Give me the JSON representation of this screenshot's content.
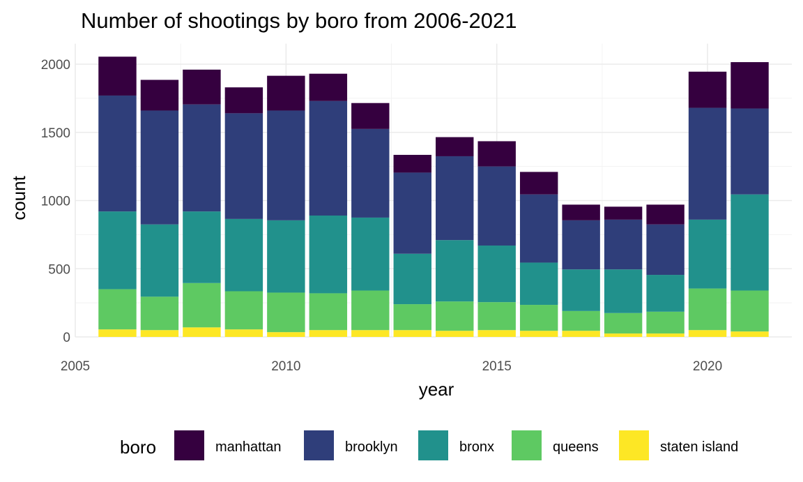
{
  "chart_data": {
    "type": "bar",
    "stacked": true,
    "title": "Number of shootings by boro from 2006-2021",
    "xlabel": "year",
    "ylabel": "count",
    "x": [
      2006,
      2007,
      2008,
      2009,
      2010,
      2011,
      2012,
      2013,
      2014,
      2015,
      2016,
      2017,
      2018,
      2019,
      2020,
      2021
    ],
    "xlim": [
      2005,
      2022
    ],
    "ylim": [
      0,
      2150
    ],
    "x_ticks": [
      2005,
      2010,
      2015,
      2020
    ],
    "y_ticks": [
      0,
      500,
      1000,
      1500,
      2000
    ],
    "x_tick_labels": [
      "2005",
      "2010",
      "2015",
      "2020"
    ],
    "y_tick_labels": [
      "0",
      "500",
      "1000",
      "1500",
      "2000"
    ],
    "grid": true,
    "legend": {
      "title": "boro",
      "position": "bottom"
    },
    "series": [
      {
        "name": "staten island",
        "color": "#fde725",
        "values": [
          55,
          50,
          70,
          55,
          35,
          50,
          50,
          50,
          45,
          50,
          45,
          45,
          25,
          25,
          50,
          40
        ]
      },
      {
        "name": "queens",
        "color": "#5ec962",
        "values": [
          295,
          245,
          325,
          280,
          290,
          270,
          290,
          190,
          215,
          205,
          190,
          145,
          150,
          160,
          305,
          300
        ]
      },
      {
        "name": "bronx",
        "color": "#21918c",
        "values": [
          570,
          530,
          525,
          530,
          530,
          570,
          535,
          370,
          450,
          415,
          310,
          305,
          320,
          270,
          505,
          705
        ]
      },
      {
        "name": "brooklyn",
        "color": "#2f3e7a",
        "values": [
          850,
          835,
          785,
          775,
          805,
          840,
          650,
          595,
          615,
          580,
          500,
          360,
          365,
          370,
          820,
          630
        ]
      },
      {
        "name": "manhattan",
        "color": "#35003f",
        "values": [
          285,
          225,
          255,
          190,
          255,
          200,
          190,
          130,
          140,
          185,
          165,
          115,
          95,
          145,
          265,
          340
        ]
      }
    ]
  }
}
